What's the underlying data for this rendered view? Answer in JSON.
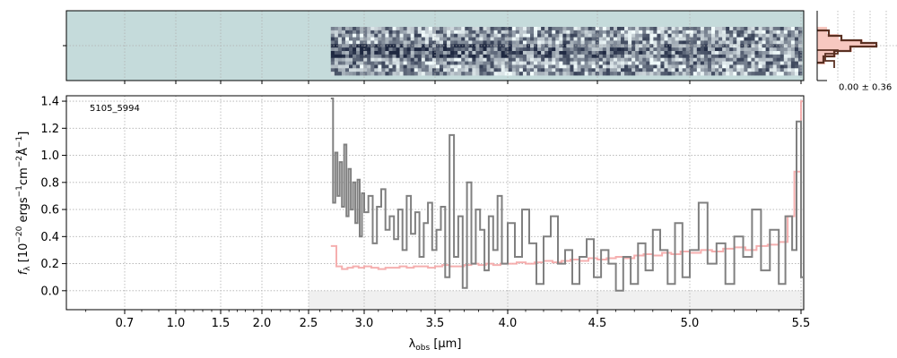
{
  "colors": {
    "spectrum": "#808080",
    "model": "#f4a6a6",
    "panel_bg": "#c5dbdb",
    "grid": "#b0b0b0",
    "profile_dark": "#5a3022",
    "profile_fill": "#f7c8c0",
    "shade": "#f0f0f0"
  },
  "object_id": "5105_5994",
  "profile_annotation": "0.00 ± 0.36",
  "chart_data": [
    {
      "type": "line",
      "panel": "1D spectrum",
      "xlabel": "λobs [μm]",
      "ylabel": "fλ [10⁻²⁰ ergs⁻¹cm⁻²Å⁻¹]",
      "xlim": [
        0.55,
        5.55
      ],
      "x_scale": "non-linear (stretched toward long wavelength)",
      "xticks": [
        0.7,
        1.0,
        1.5,
        2.0,
        2.5,
        3.0,
        3.5,
        4.0,
        4.5,
        5.0,
        5.5
      ],
      "xtick_labels": [
        "0.7",
        "1.0",
        "1.5",
        "2.0",
        "2.5",
        "3.0",
        "3.5",
        "4.0",
        "4.5",
        "5.0",
        "5.5"
      ],
      "ylim": [
        -0.14,
        1.44
      ],
      "yticks": [
        0.0,
        0.2,
        0.4,
        0.6,
        0.8,
        1.0,
        1.2,
        1.4
      ],
      "ytick_labels": [
        "0.0",
        "0.2",
        "0.4",
        "0.6",
        "0.8",
        "1.0",
        "1.2",
        "1.4"
      ],
      "grid": true,
      "series": [
        {
          "style": "step",
          "x": [
            2.7,
            2.72,
            2.74,
            2.76,
            2.78,
            2.8,
            2.82,
            2.84,
            2.86,
            2.88,
            2.9,
            2.92,
            2.94,
            2.96,
            2.98,
            3.0,
            3.03,
            3.06,
            3.09,
            3.12,
            3.15,
            3.18,
            3.21,
            3.24,
            3.27,
            3.3,
            3.33,
            3.36,
            3.39,
            3.42,
            3.45,
            3.48,
            3.51,
            3.54,
            3.57,
            3.6,
            3.63,
            3.66,
            3.69,
            3.72,
            3.75,
            3.78,
            3.81,
            3.84,
            3.87,
            3.9,
            3.93,
            3.96,
            4.0,
            4.04,
            4.08,
            4.12,
            4.16,
            4.2,
            4.24,
            4.28,
            4.32,
            4.36,
            4.4,
            4.44,
            4.48,
            4.52,
            4.56,
            4.6,
            4.64,
            4.68,
            4.72,
            4.76,
            4.8,
            4.84,
            4.88,
            4.92,
            4.96,
            5.0,
            5.04,
            5.08,
            5.12,
            5.16,
            5.2,
            5.24,
            5.28,
            5.32,
            5.36,
            5.4,
            5.43,
            5.46,
            5.48,
            5.5
          ],
          "y": [
            1.42,
            0.65,
            1.02,
            0.7,
            0.95,
            0.62,
            1.08,
            0.55,
            0.9,
            0.6,
            0.8,
            0.5,
            0.82,
            0.4,
            0.72,
            0.58,
            0.7,
            0.35,
            0.62,
            0.75,
            0.45,
            0.55,
            0.38,
            0.6,
            0.3,
            0.7,
            0.42,
            0.58,
            0.25,
            0.5,
            0.65,
            0.3,
            0.45,
            0.62,
            0.1,
            1.15,
            0.25,
            0.55,
            0.02,
            0.8,
            0.2,
            0.6,
            0.45,
            0.15,
            0.55,
            0.3,
            0.7,
            0.2,
            0.5,
            0.25,
            0.6,
            0.35,
            0.05,
            0.4,
            0.55,
            0.2,
            0.3,
            0.05,
            0.25,
            0.38,
            0.1,
            0.3,
            0.2,
            0.0,
            0.25,
            0.05,
            0.35,
            0.15,
            0.45,
            0.3,
            0.05,
            0.5,
            0.1,
            0.3,
            0.65,
            0.2,
            0.35,
            0.05,
            0.4,
            0.25,
            0.6,
            0.15,
            0.45,
            0.05,
            0.55,
            0.3,
            1.25,
            0.1
          ]
        },
        {
          "style": "step",
          "x": [
            2.7,
            2.75,
            2.8,
            2.85,
            2.9,
            2.95,
            3.0,
            3.05,
            3.1,
            3.15,
            3.2,
            3.25,
            3.3,
            3.35,
            3.4,
            3.45,
            3.5,
            3.55,
            3.6,
            3.65,
            3.7,
            3.75,
            3.8,
            3.85,
            3.9,
            3.95,
            4.0,
            4.05,
            4.1,
            4.15,
            4.2,
            4.25,
            4.3,
            4.35,
            4.4,
            4.45,
            4.5,
            4.55,
            4.6,
            4.65,
            4.7,
            4.75,
            4.8,
            4.85,
            4.9,
            4.95,
            5.0,
            5.05,
            5.1,
            5.15,
            5.2,
            5.25,
            5.3,
            5.35,
            5.4,
            5.44,
            5.47,
            5.5
          ],
          "y": [
            0.33,
            0.18,
            0.16,
            0.17,
            0.18,
            0.17,
            0.18,
            0.17,
            0.16,
            0.17,
            0.17,
            0.18,
            0.17,
            0.18,
            0.18,
            0.17,
            0.18,
            0.19,
            0.18,
            0.18,
            0.19,
            0.2,
            0.19,
            0.2,
            0.19,
            0.2,
            0.2,
            0.21,
            0.2,
            0.21,
            0.22,
            0.21,
            0.22,
            0.23,
            0.22,
            0.24,
            0.23,
            0.24,
            0.25,
            0.24,
            0.26,
            0.27,
            0.26,
            0.28,
            0.27,
            0.29,
            0.28,
            0.3,
            0.29,
            0.31,
            0.32,
            0.3,
            0.33,
            0.34,
            0.36,
            0.55,
            0.88,
            1.4
          ]
        }
      ]
    },
    {
      "type": "heatmap",
      "panel": "2D spectrum",
      "xlim": [
        0.55,
        5.55
      ],
      "data_start_x": 2.7,
      "colormap": "gray_r"
    },
    {
      "type": "line",
      "panel": "spatial profile",
      "annotation": "0.00 ± 0.36"
    }
  ]
}
